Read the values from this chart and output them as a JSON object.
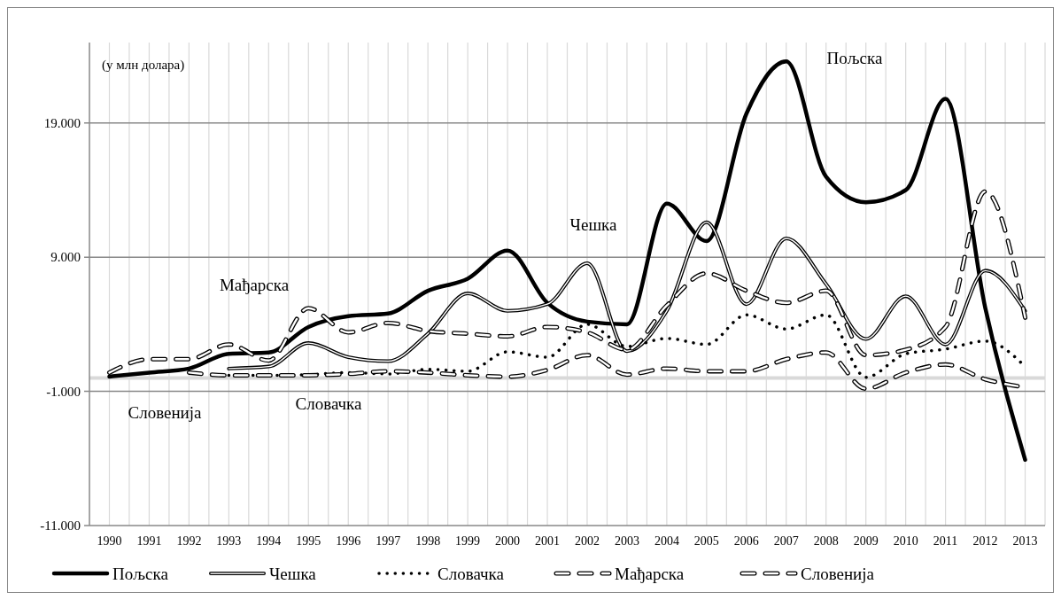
{
  "chart_data": {
    "type": "line",
    "ylabel": "(у млн долара)",
    "categories": [
      "1990",
      "1991",
      "1992",
      "1993",
      "1994",
      "1995",
      "1996",
      "1997",
      "1998",
      "1999",
      "2000",
      "2001",
      "2002",
      "2003",
      "2004",
      "2005",
      "2006",
      "2007",
      "2008",
      "2009",
      "2010",
      "2011",
      "2012",
      "2013"
    ],
    "series": [
      {
        "name": "Пољска",
        "color": "#000000",
        "line_style": "solid",
        "values": [
          100,
          400,
          700,
          1800,
          1900,
          3800,
          4600,
          4800,
          6500,
          7400,
          9500,
          5600,
          4200,
          4000,
          13000,
          10200,
          19700,
          23600,
          15000,
          13100,
          14000,
          20800,
          5200,
          -6100
        ]
      },
      {
        "name": "Чешка",
        "color": "#000000",
        "line_style": "solid",
        "values": [
          null,
          null,
          null,
          700,
          850,
          2600,
          1550,
          1250,
          3300,
          6300,
          5000,
          5500,
          8550,
          2000,
          5000,
          11600,
          5500,
          10400,
          7000,
          2900,
          6100,
          2500,
          8000,
          5000
        ]
      },
      {
        "name": "Словачка",
        "color": "#000000",
        "line_style": "dotted",
        "values": [
          null,
          null,
          null,
          200,
          200,
          250,
          400,
          300,
          650,
          500,
          1950,
          1550,
          4000,
          2350,
          2950,
          2500,
          4700,
          3650,
          4700,
          50,
          1800,
          2150,
          2750,
          850
        ]
      },
      {
        "name": "Мађарска",
        "color": "#000000",
        "line_style": "dashed",
        "values": [
          400,
          1400,
          1400,
          2500,
          1300,
          5200,
          3400,
          4100,
          3500,
          3300,
          3100,
          3800,
          3400,
          2100,
          5400,
          7800,
          6500,
          5600,
          6500,
          1700,
          2100,
          3800,
          13900,
          4500
        ]
      },
      {
        "name": "Словенија",
        "color": "#000000",
        "line_style": "dashed",
        "values": [
          null,
          null,
          400,
          200,
          200,
          200,
          300,
          500,
          400,
          200,
          100,
          600,
          1700,
          250,
          700,
          500,
          500,
          1400,
          1900,
          -800,
          400,
          1000,
          -100,
          -700
        ]
      }
    ],
    "ylim": [
      -11000,
      25000
    ],
    "yticks": [
      {
        "value": -11000,
        "label": "-11.000"
      },
      {
        "value": -1000,
        "label": "-1.000"
      },
      {
        "value": 9000,
        "label": "9.000"
      },
      {
        "value": 19000,
        "label": "19.000"
      }
    ],
    "grid": true,
    "legend": "bottom",
    "annotations": [
      "Пољска",
      "Чешка",
      "Мађарска",
      "Словачка",
      "Словенија"
    ]
  }
}
